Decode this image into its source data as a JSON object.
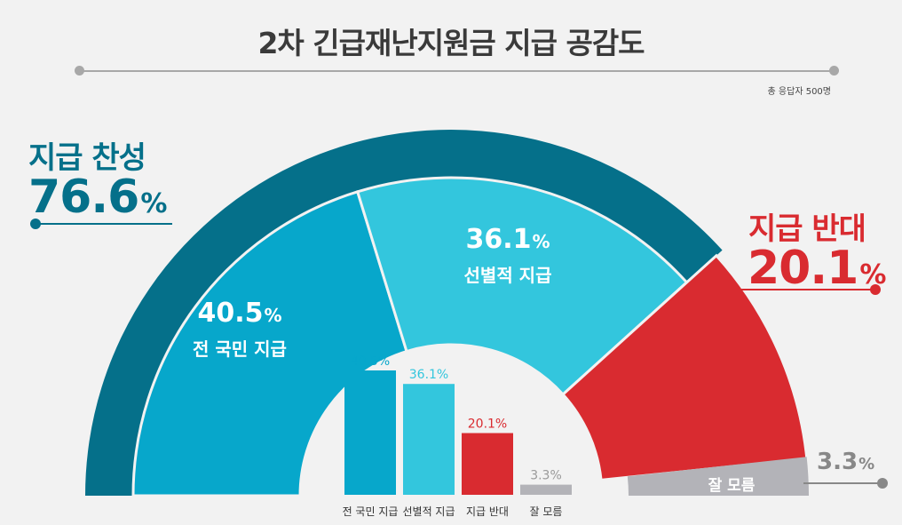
{
  "title": "2차 긴급재난지원금 지급 공감도",
  "respondents": "총 응답자 500명",
  "colors": {
    "support_outer": "#05708a",
    "all_citizens": "#07a7cb",
    "selective": "#33c6dd",
    "oppose": "#d92b30",
    "dont_know": "#b3b3b8",
    "leader_gray": "#888888"
  },
  "groups": {
    "support": {
      "label": "지급 찬성",
      "value": "76.6",
      "unit": "%"
    },
    "oppose": {
      "label": "지급 반대",
      "value": "20.1",
      "unit": "%"
    }
  },
  "chart_data": {
    "type": "bar",
    "title": "2차 긴급재난지원금 지급 공감도",
    "categories": [
      "전 국민 지급",
      "선별적 지급",
      "지급 반대",
      "잘 모름"
    ],
    "values": [
      40.5,
      36.1,
      20.1,
      3.3
    ],
    "value_labels": [
      "40.5%",
      "36.1%",
      "20.1%",
      "3.3%"
    ],
    "unit": "%",
    "groups": [
      {
        "label": "지급 찬성",
        "value": 76.6,
        "members": [
          "전 국민 지급",
          "선별적 지급"
        ]
      },
      {
        "label": "지급 반대",
        "value": 20.1,
        "members": [
          "지급 반대"
        ]
      }
    ]
  }
}
